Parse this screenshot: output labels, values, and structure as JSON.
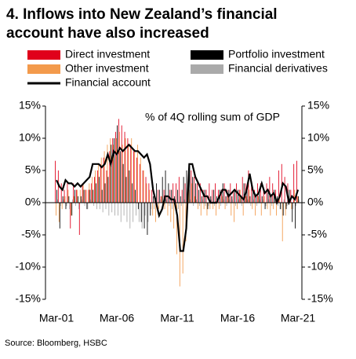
{
  "chart_data": {
    "type": "bar_line",
    "title": [
      "4. Inflows into New Zealand’s financial",
      "account have also increased"
    ],
    "annotation": "% of 4Q rolling sum of GDP",
    "source": "Source: Bloomberg, HSBC",
    "categories": [
      "Mar-01",
      null,
      null,
      null,
      null,
      null,
      null,
      null,
      null,
      null,
      null,
      null,
      null,
      null,
      null,
      null,
      null,
      null,
      null,
      null,
      "Mar-06",
      null,
      null,
      null,
      null,
      null,
      null,
      null,
      null,
      null,
      null,
      null,
      null,
      null,
      null,
      null,
      null,
      null,
      null,
      null,
      "Mar-11",
      null,
      null,
      null,
      null,
      null,
      null,
      null,
      null,
      null,
      null,
      null,
      null,
      null,
      null,
      null,
      null,
      null,
      null,
      null,
      "Mar-16",
      null,
      null,
      null,
      null,
      null,
      null,
      null,
      null,
      null,
      null,
      null,
      null,
      null,
      null,
      null,
      null,
      null,
      null,
      null,
      "Mar-21"
    ],
    "series": [
      {
        "name": "Direct investment",
        "color": "#e0001b",
        "kind": "bar",
        "values": [
          6.5,
          5,
          3,
          2,
          3,
          -4,
          3,
          2,
          -5,
          3,
          2,
          2,
          3,
          4,
          5,
          6,
          7,
          5,
          8,
          10,
          11,
          13,
          12,
          11,
          10,
          9,
          8,
          7,
          6,
          5,
          4,
          3,
          2,
          1,
          2,
          1,
          2,
          1,
          2,
          3,
          3,
          4,
          2,
          3,
          4,
          5,
          4,
          3,
          3,
          2,
          2,
          3,
          2,
          3,
          2,
          2,
          3,
          2,
          3,
          2,
          3,
          2,
          4,
          3,
          5,
          3,
          2,
          3,
          3,
          2,
          3,
          4,
          3,
          2,
          5,
          6,
          4,
          3,
          2,
          6,
          6.5
        ]
      },
      {
        "name": "Other investment",
        "color": "#f39a4c",
        "kind": "bar",
        "values": [
          -2,
          -3,
          -1,
          1,
          2,
          -2,
          1,
          2,
          2,
          3,
          2,
          3,
          4,
          5,
          6,
          7,
          8,
          9,
          10,
          9,
          10,
          11,
          9,
          10,
          9,
          10,
          8,
          9,
          7,
          5,
          3,
          2,
          -2,
          -3,
          -1,
          1,
          -1,
          -2,
          -3,
          -4,
          -8,
          -13,
          -11,
          -6,
          2,
          3,
          1,
          -1,
          -2,
          -1,
          -2,
          -1,
          -1,
          -2,
          -1,
          1,
          -1,
          1,
          -2,
          -3,
          -1,
          2,
          -2,
          1,
          2,
          -1,
          -2,
          1,
          -2,
          1,
          -1,
          -2,
          -1,
          -2,
          1,
          -6,
          -2,
          1,
          -1,
          2,
          1
        ]
      },
      {
        "name": "Portfolio investment",
        "color": "#000000",
        "kind": "bar",
        "values": [
          2,
          -4,
          1,
          -1,
          1,
          -2,
          2,
          1,
          1,
          2,
          -1,
          2,
          2,
          3,
          4,
          2,
          3,
          4,
          9,
          10,
          12,
          8,
          6,
          4,
          5,
          3,
          2,
          -1,
          -3,
          -4,
          -5,
          -2,
          1,
          3,
          2,
          4,
          5,
          3,
          2,
          1,
          2,
          1,
          4,
          5,
          6,
          4,
          3,
          2,
          1,
          2,
          -1,
          1,
          2,
          1,
          2,
          3,
          1,
          2,
          1,
          2,
          2,
          1,
          3,
          2,
          1,
          2,
          1,
          2,
          1,
          -1,
          2,
          1,
          2,
          1,
          -1,
          -2,
          -1,
          2,
          -3,
          -4,
          1
        ]
      },
      {
        "name": "Financial derivatives",
        "color": "#aaaaaa",
        "kind": "bar",
        "values": [
          0.5,
          -0.5,
          0.5,
          -0.5,
          -1,
          0.5,
          -0.5,
          -1,
          0.5,
          -0.5,
          -1,
          0.5,
          -0.5,
          -1,
          -1,
          -1.5,
          -1,
          -2,
          -1.5,
          -2,
          -2,
          -3,
          -2,
          -3,
          -4,
          -3,
          -2,
          -3,
          -4,
          -2,
          -3,
          -1,
          -1,
          -0.5,
          0.5,
          -1,
          0.5,
          -0.5,
          -1,
          0.5,
          -1,
          -0.5,
          0.5,
          1,
          0.5,
          -0.5,
          0.5,
          -0.5,
          0.5,
          -0.5,
          -0.5,
          0.5,
          -0.5,
          0.5,
          -0.5,
          0.5,
          -0.5,
          0.5,
          0.5,
          -0.5,
          0.5,
          -0.5,
          0.5,
          0.5,
          -0.5,
          0.5,
          -0.5,
          0.5,
          0.5,
          -0.5,
          0.5,
          -0.5,
          0.5,
          -0.5,
          -1,
          0.5,
          -0.5,
          0.5,
          -1,
          -0.5,
          0.5
        ]
      },
      {
        "name": "Financial account",
        "color": "#000000",
        "kind": "line",
        "values": [
          3.5,
          2.5,
          2,
          3.5,
          3,
          3,
          2.5,
          3,
          2.5,
          3,
          3.5,
          4,
          6,
          6,
          6,
          5.5,
          6,
          7.5,
          6,
          8,
          7.5,
          8.5,
          8,
          8.5,
          9,
          8.5,
          8,
          8,
          7.5,
          7,
          7.5,
          6,
          2,
          0,
          -2,
          -1,
          1,
          1,
          0.5,
          0.5,
          -2,
          -7.5,
          -7.5,
          -4,
          6,
          6,
          4,
          3,
          2,
          1,
          1,
          0,
          0,
          0,
          1,
          2,
          2,
          1,
          1.5,
          2,
          1.5,
          1,
          0.5,
          2,
          4.5,
          2,
          1,
          1.5,
          3,
          1.5,
          2,
          1,
          1.5,
          0,
          1,
          3,
          2.5,
          0,
          1,
          0.5,
          2
        ]
      }
    ],
    "ylim": [
      -15,
      15
    ],
    "yticks": [
      {
        "value": 15,
        "label": "15%"
      },
      {
        "value": 10,
        "label": "10%"
      },
      {
        "value": 5,
        "label": "5%"
      },
      {
        "value": 0,
        "label": "0%"
      },
      {
        "value": -5,
        "label": "-5%"
      },
      {
        "value": -10,
        "label": "-10%"
      },
      {
        "value": -15,
        "label": "-15%"
      }
    ],
    "y2lim": [
      -15,
      15
    ],
    "y2ticks": [
      {
        "value": 15,
        "label": "15%"
      },
      {
        "value": 10,
        "label": "10%"
      },
      {
        "value": 5,
        "label": "5%"
      },
      {
        "value": 0,
        "label": "0%"
      },
      {
        "value": -5,
        "label": "-5%"
      },
      {
        "value": -10,
        "label": "-10%"
      },
      {
        "value": -15,
        "label": "-15%"
      }
    ]
  }
}
